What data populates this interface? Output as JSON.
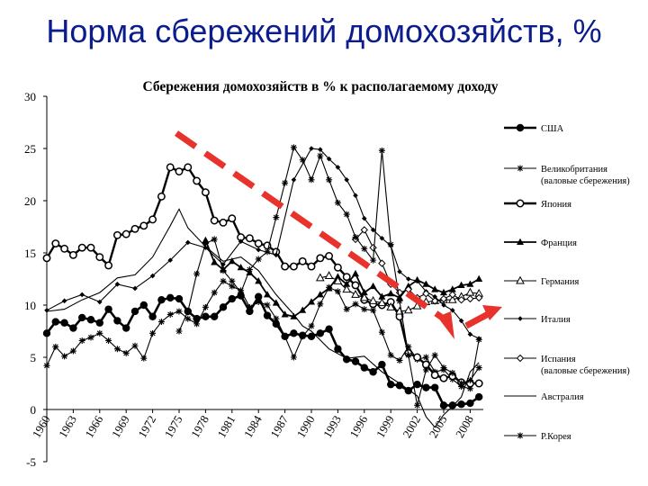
{
  "slide": {
    "title": "Норма сбережений домохозяйств, %"
  },
  "chart_data": {
    "type": "line",
    "title": "Сбережения домохозяйств в % к располагаемому доходу",
    "xlabel": "",
    "ylabel": "",
    "ylim": [
      -5,
      30
    ],
    "xlim": [
      1960,
      2010
    ],
    "yticks": [
      "30",
      "25",
      "20",
      "15",
      "10",
      "5",
      "0",
      "-5"
    ],
    "xticks": [
      "1960",
      "1963",
      "1966",
      "1969",
      "1972",
      "1975",
      "1978",
      "1981",
      "1984",
      "1987",
      "1990",
      "1993",
      "1996",
      "1999",
      "2002",
      "2005",
      "2008"
    ],
    "grid": false,
    "legend_position": "right",
    "trend_arrow_color": "#e8322c",
    "series": [
      {
        "name": "США",
        "marker": "filled-circle",
        "x": [
          1960,
          1961,
          1962,
          1963,
          1964,
          1965,
          1966,
          1967,
          1968,
          1969,
          1970,
          1971,
          1972,
          1973,
          1974,
          1975,
          1976,
          1977,
          1978,
          1979,
          1980,
          1981,
          1982,
          1983,
          1984,
          1985,
          1986,
          1987,
          1988,
          1989,
          1990,
          1991,
          1992,
          1993,
          1994,
          1995,
          1996,
          1997,
          1998,
          1999,
          2000,
          2001,
          2002,
          2003,
          2004,
          2005,
          2006,
          2007,
          2008,
          2009
        ],
        "y": [
          7.3,
          8.4,
          8.3,
          7.8,
          8.8,
          8.6,
          8.3,
          9.6,
          8.5,
          7.8,
          9.4,
          10.0,
          8.9,
          10.5,
          10.7,
          10.6,
          9.4,
          8.7,
          8.9,
          8.9,
          9.8,
          10.6,
          10.9,
          9.4,
          10.8,
          9.0,
          8.2,
          7.0,
          7.3,
          7.1,
          7.0,
          7.3,
          7.7,
          5.8,
          4.8,
          4.6,
          4.0,
          3.6,
          4.3,
          2.4,
          2.3,
          1.8,
          2.4,
          2.1,
          2.1,
          0.4,
          0.4,
          0.5,
          0.6,
          1.2
        ]
      },
      {
        "name": "Великобритания (валовые сбережения)",
        "marker": "star",
        "x": [
          1960,
          1961,
          1962,
          1963,
          1964,
          1965,
          1966,
          1967,
          1968,
          1969,
          1970,
          1971,
          1972,
          1973,
          1974,
          1975,
          1976,
          1977,
          1978,
          1979,
          1980,
          1981,
          1982,
          1983,
          1984,
          1985,
          1986,
          1987,
          1988,
          1989,
          1990,
          1991,
          1992,
          1993,
          1994,
          1995,
          1996,
          1997,
          1998,
          1999,
          2000,
          2001,
          2002,
          2003,
          2004,
          2005,
          2006,
          2007,
          2008,
          2009
        ],
        "y": [
          4.2,
          6.0,
          5.1,
          5.6,
          6.6,
          6.9,
          7.3,
          6.6,
          5.8,
          5.4,
          6.1,
          4.9,
          7.3,
          8.4,
          9.1,
          9.4,
          8.7,
          8.2,
          9.8,
          11.2,
          12.3,
          11.8,
          11.4,
          9.8,
          10.3,
          10.0,
          8.7,
          7.0,
          5.0,
          7.0,
          8.0,
          10.1,
          11.7,
          11.3,
          9.6,
          10.1,
          9.6,
          9.5,
          7.4,
          5.2,
          4.7,
          6.0,
          4.8,
          5.0,
          3.6,
          3.8,
          2.9,
          2.2,
          2.0,
          6.7
        ]
      },
      {
        "name": "Япония",
        "marker": "open-circle",
        "x": [
          1960,
          1961,
          1962,
          1963,
          1964,
          1965,
          1966,
          1967,
          1968,
          1969,
          1970,
          1971,
          1972,
          1973,
          1974,
          1975,
          1976,
          1977,
          1978,
          1979,
          1980,
          1981,
          1982,
          1983,
          1984,
          1985,
          1986,
          1987,
          1988,
          1989,
          1990,
          1991,
          1992,
          1993,
          1994,
          1995,
          1996,
          1997,
          1998,
          1999,
          2000,
          2001,
          2002,
          2003,
          2004,
          2005,
          2006,
          2007,
          2008,
          2009
        ],
        "y": [
          14.5,
          15.9,
          15.4,
          14.8,
          15.5,
          15.5,
          14.6,
          13.8,
          16.7,
          16.8,
          17.3,
          17.6,
          18.2,
          20.4,
          23.2,
          22.8,
          23.2,
          21.9,
          20.8,
          18.1,
          17.9,
          18.3,
          16.5,
          16.4,
          15.9,
          15.7,
          15.1,
          13.7,
          13.7,
          14.2,
          13.7,
          14.5,
          14.7,
          13.6,
          12.7,
          11.9,
          10.5,
          10.1,
          10.0,
          10.3,
          8.9,
          5.4,
          5.0,
          4.3,
          3.3,
          3.0,
          3.2,
          2.6,
          2.5,
          2.5
        ]
      },
      {
        "name": "Франция",
        "marker": "filled-triangle",
        "x": [
          1978,
          1979,
          1980,
          1981,
          1982,
          1983,
          1984,
          1985,
          1986,
          1987,
          1988,
          1989,
          1990,
          1991,
          1992,
          1993,
          1994,
          1995,
          1996,
          1997,
          1998,
          1999,
          2000,
          2001,
          2002,
          2003,
          2004,
          2005,
          2006,
          2007,
          2008,
          2009
        ],
        "y": [
          16.2,
          14.1,
          13.4,
          14.2,
          13.6,
          13.1,
          12.3,
          11.0,
          10.2,
          9.1,
          8.9,
          9.5,
          10.3,
          11.0,
          11.6,
          12.7,
          12.0,
          13.0,
          11.2,
          11.8,
          10.8,
          11.1,
          10.7,
          11.8,
          12.4,
          12.0,
          11.5,
          11.2,
          11.5,
          11.9,
          12.0,
          12.5
        ]
      },
      {
        "name": "Германия",
        "marker": "open-triangle",
        "x": [
          1991,
          1992,
          1993,
          1994,
          1995,
          1996,
          1997,
          1998,
          1999,
          2000,
          2001,
          2002,
          2003,
          2004,
          2005,
          2006,
          2007,
          2008,
          2009
        ],
        "y": [
          12.6,
          12.8,
          12.3,
          11.5,
          11.0,
          10.7,
          10.4,
          10.2,
          9.8,
          9.4,
          9.5,
          9.9,
          10.3,
          10.4,
          10.5,
          10.5,
          10.8,
          11.2,
          11.1
        ]
      },
      {
        "name": "Италия",
        "marker": "small-diamond",
        "x": [
          1960,
          1962,
          1964,
          1966,
          1968,
          1970,
          1972,
          1974,
          1976,
          1978,
          1980,
          1982,
          1984,
          1986,
          1988,
          1990,
          1991,
          1992,
          1993,
          1994,
          1995,
          1996,
          1997,
          1998,
          1999,
          2000,
          2001,
          2002,
          2003,
          2004,
          2005,
          2006,
          2007,
          2008,
          2009
        ],
        "y": [
          9.5,
          10.4,
          11.0,
          10.3,
          12.0,
          11.6,
          12.8,
          14.3,
          16.0,
          15.5,
          13.9,
          16.1,
          15.3,
          14.8,
          22.0,
          25.0,
          24.9,
          24.0,
          23.2,
          22.0,
          20.5,
          18.3,
          17.2,
          16.4,
          15.7,
          13.2,
          12.5,
          12.3,
          11.3,
          10.8,
          10.0,
          9.5,
          8.5,
          7.2,
          6.8
        ]
      },
      {
        "name": "Испания (валовые сбережения)",
        "marker": "open-diamond",
        "x": [
          1995,
          1996,
          1997,
          1998,
          1999,
          2000,
          2001,
          2002,
          2003,
          2004,
          2005,
          2006,
          2007,
          2008,
          2009
        ],
        "y": [
          16.3,
          17.2,
          15.5,
          14.0,
          12.0,
          11.2,
          11.5,
          10.7,
          11.1,
          10.4,
          10.6,
          11.0,
          10.5,
          10.6,
          10.7
        ]
      },
      {
        "name": "Австралия",
        "marker": "none",
        "x": [
          1960,
          1962,
          1964,
          1966,
          1968,
          1970,
          1972,
          1974,
          1975,
          1976,
          1978,
          1980,
          1982,
          1984,
          1986,
          1988,
          1989,
          1990,
          1992,
          1994,
          1996,
          1998,
          2000,
          2002,
          2003,
          2004,
          2005,
          2006,
          2007,
          2008,
          2009
        ],
        "y": [
          9.4,
          9.6,
          10.5,
          11.2,
          12.6,
          12.9,
          14.6,
          17.6,
          19.2,
          17.4,
          15.6,
          14.2,
          14.6,
          13.3,
          11.0,
          9.1,
          8.0,
          7.5,
          5.8,
          4.9,
          5.1,
          3.6,
          2.5,
          1.3,
          -0.7,
          -1.7,
          -0.5,
          0.3,
          1.2,
          3.6,
          4.5
        ]
      },
      {
        "name": "Р.Корея",
        "marker": "star",
        "x": [
          1975,
          1976,
          1977,
          1978,
          1979,
          1980,
          1981,
          1982,
          1983,
          1984,
          1985,
          1986,
          1987,
          1988,
          1989,
          1990,
          1991,
          1992,
          1993,
          1994,
          1995,
          1996,
          1997,
          1998,
          1999,
          2000,
          2001,
          2002,
          2003,
          2004,
          2005,
          2006,
          2007,
          2008,
          2009
        ],
        "y": [
          7.5,
          9.4,
          13.0,
          15.9,
          16.3,
          13.3,
          12.3,
          11.2,
          13.4,
          14.4,
          15.1,
          18.4,
          21.7,
          25.1,
          23.9,
          22.0,
          24.3,
          22.0,
          19.8,
          18.7,
          16.5,
          15.4,
          14.3,
          24.8,
          15.8,
          10.4,
          5.2,
          0.4,
          3.8,
          5.2,
          4.0,
          3.5,
          2.5,
          2.8,
          4.0
        ]
      }
    ]
  }
}
